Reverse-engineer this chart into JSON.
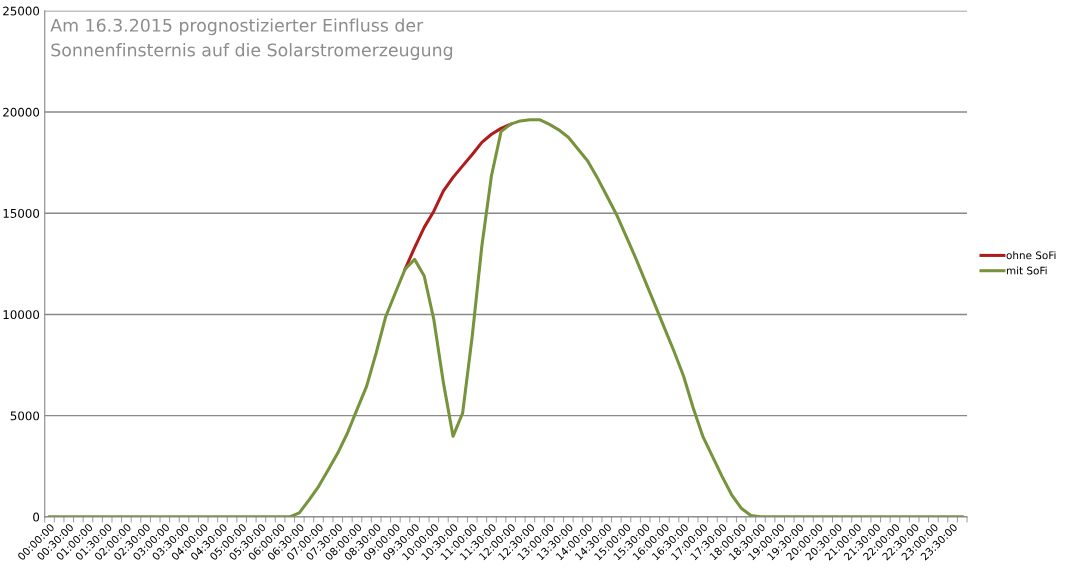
{
  "chart_data": {
    "type": "line",
    "title": "Am 16.3.2015 prognostizierter Einfluss der\nSonnenfinsternis auf die Solarstromerzeugung",
    "categories": [
      "00:00:00",
      null,
      "00:30:00",
      null,
      "01:00:00",
      null,
      "01:30:00",
      null,
      "02:00:00",
      null,
      "02:30:00",
      null,
      "03:00:00",
      null,
      "03:30:00",
      null,
      "04:00:00",
      null,
      "04:30:00",
      null,
      "05:00:00",
      null,
      "05:30:00",
      null,
      "06:00:00",
      null,
      "06:30:00",
      null,
      "07:00:00",
      null,
      "07:30:00",
      null,
      "08:00:00",
      null,
      "08:30:00",
      null,
      "09:00:00",
      null,
      "09:30:00",
      null,
      "10:00:00",
      null,
      "10:30:00",
      null,
      "11:00:00",
      null,
      "11:30:00",
      null,
      "12:00:00",
      null,
      "12:30:00",
      null,
      "13:00:00",
      null,
      "13:30:00",
      null,
      "14:00:00",
      null,
      "14:30:00",
      null,
      "15:00:00",
      null,
      "15:30:00",
      null,
      "16:00:00",
      null,
      "16:30:00",
      null,
      "17:00:00",
      null,
      "17:30:00",
      null,
      "18:00:00",
      null,
      "18:30:00",
      null,
      "19:00:00",
      null,
      "19:30:00",
      null,
      "20:00:00",
      null,
      "20:30:00",
      null,
      "21:00:00",
      null,
      "21:30:00",
      null,
      "22:00:00",
      null,
      "22:30:00",
      null,
      "23:00:00",
      null,
      "23:30:00",
      null
    ],
    "series": [
      {
        "name": "ohne SoFi",
        "color": "#b01c1c",
        "values": [
          null,
          null,
          null,
          null,
          null,
          null,
          null,
          null,
          null,
          null,
          null,
          null,
          null,
          null,
          null,
          null,
          null,
          null,
          null,
          null,
          null,
          null,
          null,
          null,
          null,
          null,
          null,
          null,
          null,
          null,
          null,
          null,
          null,
          null,
          null,
          null,
          null,
          12230,
          13300,
          14300,
          15100,
          16100,
          16770,
          17340,
          17900,
          18500,
          18900,
          19190,
          19400,
          null,
          null,
          null,
          null,
          null,
          null,
          null,
          null,
          null,
          null,
          null,
          null,
          null,
          null,
          null,
          null,
          null,
          null,
          null,
          null,
          null,
          null,
          null,
          null,
          null,
          null,
          null,
          null,
          null,
          null,
          null,
          null,
          null,
          null,
          null,
          null,
          null,
          null,
          null,
          null,
          null,
          null,
          null,
          null,
          null,
          null,
          null
        ]
      },
      {
        "name": "mit SoFi",
        "color": "#77933c",
        "values": [
          0,
          0,
          0,
          0,
          0,
          0,
          0,
          0,
          0,
          0,
          0,
          0,
          0,
          0,
          0,
          0,
          0,
          0,
          0,
          0,
          0,
          0,
          0,
          0,
          0,
          0,
          200,
          830,
          1500,
          2320,
          3150,
          4130,
          5300,
          6450,
          8100,
          9900,
          11070,
          12230,
          12720,
          11900,
          9750,
          6620,
          3980,
          5130,
          8930,
          13380,
          16850,
          19030,
          19400,
          19560,
          19620,
          19620,
          19400,
          19120,
          18750,
          18170,
          17590,
          16770,
          15860,
          14950,
          13880,
          12800,
          11650,
          10500,
          9340,
          8180,
          6950,
          5380,
          3980,
          2990,
          2000,
          1090,
          430,
          70,
          0,
          0,
          0,
          0,
          0,
          0,
          0,
          0,
          0,
          0,
          0,
          0,
          0,
          0,
          0,
          0,
          0,
          0,
          0,
          0,
          0,
          0
        ]
      }
    ],
    "ylim": [
      0,
      25000
    ],
    "yticks": [
      0,
      5000,
      10000,
      15000,
      20000,
      25000
    ],
    "grid": "y",
    "legend": "right"
  }
}
